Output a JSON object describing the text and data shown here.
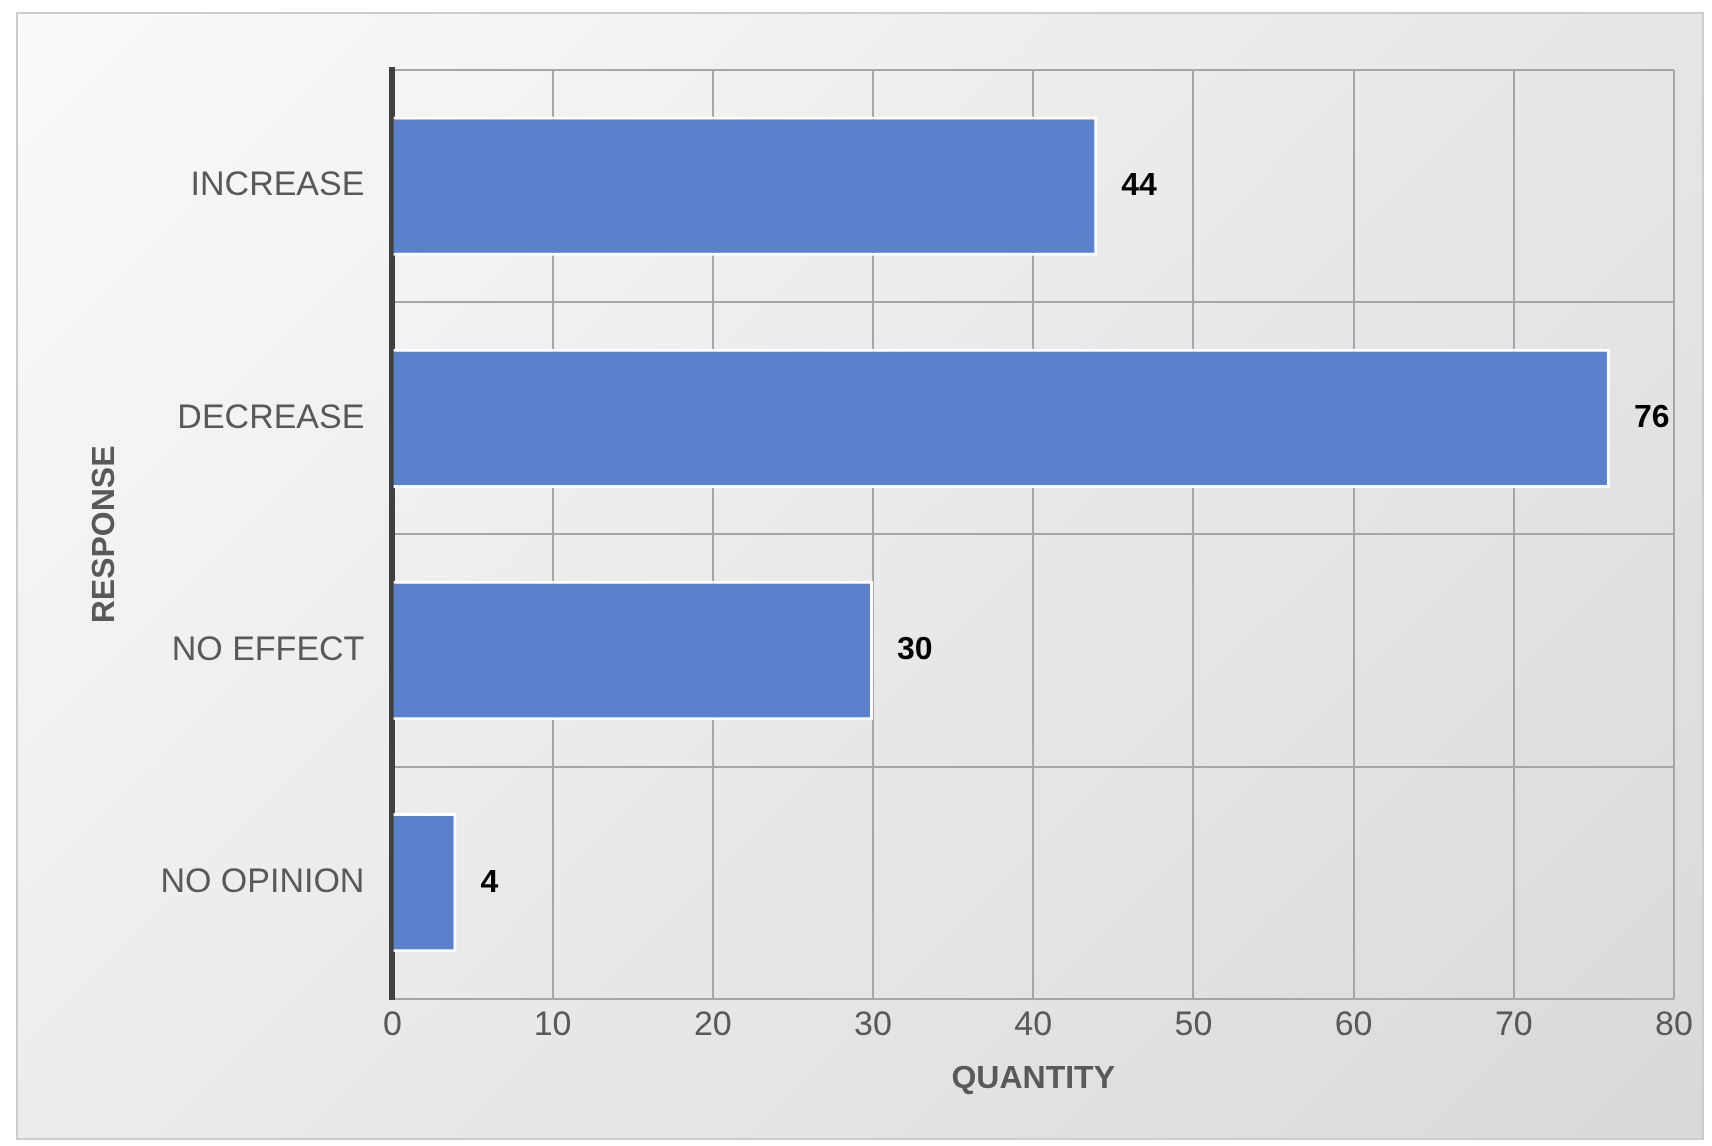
{
  "chart_data": {
    "type": "bar",
    "orientation": "horizontal",
    "xlabel": "QUANTITY",
    "ylabel": "RESPONSE",
    "categories": [
      "INCREASE",
      "DECREASE",
      "NO EFFECT",
      "NO OPINION"
    ],
    "values": [
      44,
      76,
      30,
      4
    ],
    "color": "#5b80cc",
    "xlim": [
      0,
      80
    ],
    "xticks": [
      0,
      10,
      20,
      30,
      40,
      50,
      60,
      70,
      80
    ],
    "grid": true,
    "data_labels": true
  }
}
